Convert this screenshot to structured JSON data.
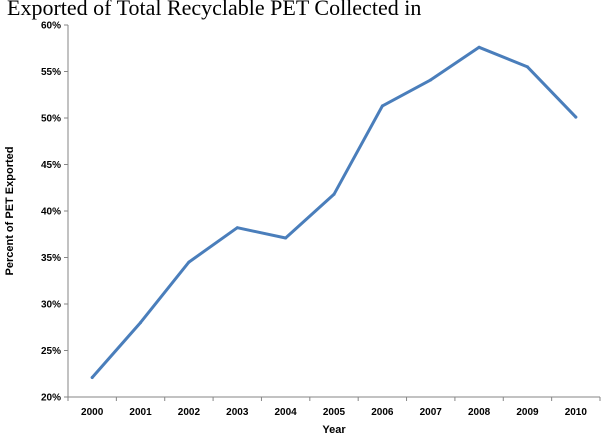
{
  "chart_data": {
    "type": "line",
    "title": "Exported of Total Recyclable PET Collected in",
    "xlabel": "Year",
    "ylabel": "Percent of PET Exported",
    "categories": [
      "2000",
      "2001",
      "2002",
      "2003",
      "2004",
      "2005",
      "2006",
      "2007",
      "2008",
      "2009",
      "2010"
    ],
    "series": [
      {
        "values": [
          22.1,
          28.0,
          34.5,
          38.2,
          37.1,
          41.8,
          51.3,
          54.1,
          57.6,
          55.5,
          50.1
        ]
      }
    ],
    "ylim": [
      20,
      60
    ],
    "yticks": [
      "20%",
      "25%",
      "30%",
      "35%",
      "40%",
      "45%",
      "50%",
      "55%",
      "60%"
    ],
    "grid": false,
    "legend": "none",
    "line_color": "#4a7ebb"
  }
}
